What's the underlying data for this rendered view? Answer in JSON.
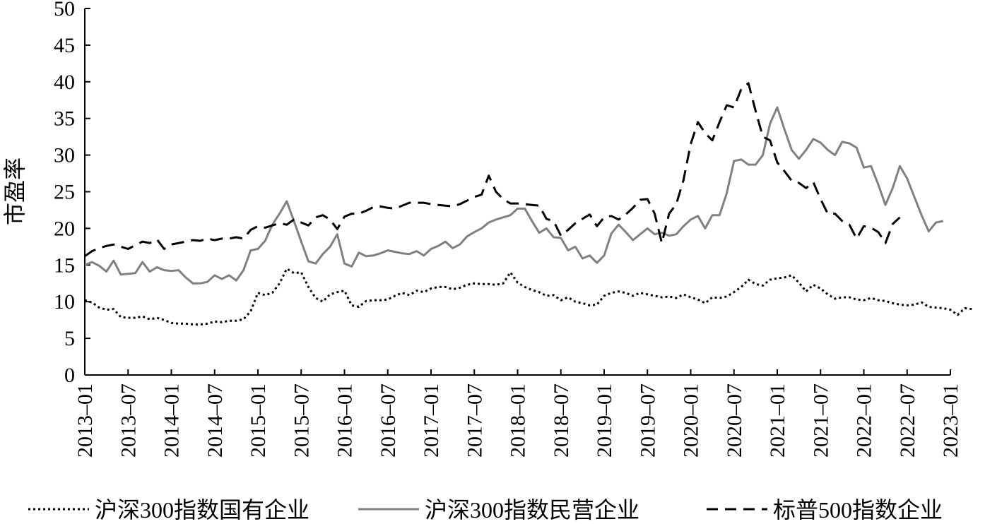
{
  "chart_data": {
    "type": "line",
    "title": "",
    "xlabel": "",
    "ylabel": "市盈率",
    "ylim": [
      0,
      50
    ],
    "yticks": [
      0,
      5,
      10,
      15,
      20,
      25,
      30,
      35,
      40,
      45,
      50
    ],
    "x_start": "2013-01",
    "x_end": "2023-01",
    "xticks": [
      "2013-01",
      "2013-07",
      "2014-01",
      "2014-07",
      "2015-01",
      "2015-07",
      "2016-01",
      "2016-07",
      "2017-01",
      "2017-07",
      "2018-01",
      "2018-07",
      "2019-01",
      "2019-07",
      "2020-01",
      "2020-07",
      "2021-01",
      "2021-07",
      "2022-01",
      "2022-07",
      "2023-01"
    ],
    "grid": false,
    "legend_position": "bottom",
    "series": [
      {
        "name": "沪深300指数国有企业",
        "style": "dotted",
        "color": "#000000",
        "values": [
          10.2,
          9.9,
          9.2,
          8.9,
          9.0,
          7.9,
          7.8,
          7.8,
          8.0,
          7.6,
          7.8,
          7.5,
          7.1,
          7.0,
          7.0,
          6.9,
          6.9,
          7.0,
          7.3,
          7.2,
          7.4,
          7.4,
          7.6,
          8.7,
          11.2,
          10.9,
          11.2,
          12.5,
          14.5,
          13.9,
          14.0,
          12.0,
          10.5,
          10.0,
          11.0,
          11.3,
          11.5,
          9.5,
          9.3,
          10.1,
          10.2,
          10.2,
          10.3,
          10.8,
          11.2,
          10.9,
          11.5,
          11.3,
          11.8,
          12.0,
          12.0,
          11.7,
          11.9,
          12.3,
          12.5,
          12.4,
          12.4,
          12.3,
          12.5,
          14.0,
          12.6,
          12.0,
          11.6,
          11.3,
          10.8,
          10.9,
          10.2,
          10.6,
          10.0,
          9.8,
          9.5,
          9.6,
          10.8,
          11.2,
          11.4,
          11.2,
          10.8,
          11.2,
          11.0,
          10.8,
          10.6,
          10.7,
          10.5,
          11.0,
          10.6,
          10.3,
          9.8,
          10.6,
          10.5,
          10.7,
          11.3,
          12.0,
          13.0,
          12.4,
          12.2,
          13.0,
          13.2,
          13.3,
          13.6,
          12.6,
          11.4,
          12.3,
          11.8,
          11.0,
          10.4,
          10.6,
          10.6,
          10.3,
          10.2,
          10.5,
          10.2,
          10.1,
          9.8,
          9.6,
          9.5,
          9.6,
          9.9,
          9.3,
          9.2,
          9.1,
          8.9,
          8.2,
          9.1,
          9.0
        ]
      },
      {
        "name": "沪深300指数民营企业",
        "style": "solid",
        "color": "#808080",
        "values": [
          15.0,
          15.4,
          14.9,
          14.1,
          15.6,
          13.7,
          13.8,
          13.9,
          15.4,
          14.1,
          14.7,
          14.3,
          14.2,
          14.3,
          13.3,
          12.5,
          12.5,
          12.7,
          13.6,
          13.1,
          13.6,
          12.9,
          14.3,
          17.0,
          17.2,
          18.3,
          20.5,
          22.0,
          23.7,
          21.0,
          18.2,
          15.5,
          15.2,
          16.5,
          17.5,
          19.2,
          15.2,
          14.8,
          16.7,
          16.2,
          16.3,
          16.6,
          17.0,
          16.8,
          16.6,
          16.5,
          16.9,
          16.3,
          17.2,
          17.6,
          18.2,
          17.3,
          17.8,
          18.9,
          19.5,
          20.0,
          20.8,
          21.2,
          21.5,
          21.8,
          22.7,
          22.7,
          21.0,
          19.4,
          20.0,
          18.8,
          18.7,
          17.0,
          17.5,
          15.9,
          16.3,
          15.3,
          16.3,
          19.3,
          20.5,
          19.5,
          18.4,
          19.2,
          20.0,
          19.2,
          19.4,
          19.0,
          19.2,
          20.3,
          21.2,
          21.7,
          20.0,
          21.8,
          21.8,
          24.8,
          29.2,
          29.4,
          28.7,
          28.7,
          30.0,
          34.3,
          36.5,
          33.5,
          30.7,
          29.5,
          30.7,
          32.2,
          31.7,
          30.7,
          30.0,
          31.8,
          31.6,
          31.0,
          28.3,
          28.5,
          26.0,
          23.2,
          25.5,
          28.5,
          26.8,
          24.3,
          21.8,
          19.6,
          20.8,
          21.0
        ]
      },
      {
        "name": "标普500指数企业",
        "style": "dashed",
        "color": "#000000",
        "values": [
          16.2,
          16.9,
          17.3,
          17.6,
          17.8,
          17.5,
          17.2,
          17.7,
          18.2,
          18.0,
          18.5,
          17.2,
          17.8,
          18.0,
          18.2,
          18.4,
          18.3,
          18.6,
          18.4,
          18.6,
          18.6,
          18.8,
          18.6,
          19.8,
          20.3,
          20.1,
          20.4,
          20.7,
          20.5,
          21.2,
          20.8,
          20.4,
          21.5,
          21.8,
          21.2,
          19.9,
          21.6,
          22.0,
          22.0,
          22.4,
          22.9,
          23.0,
          22.8,
          22.7,
          23.1,
          23.5,
          23.5,
          23.5,
          23.3,
          23.2,
          23.1,
          23.0,
          23.3,
          23.8,
          24.3,
          24.6,
          27.2,
          25.0,
          24.0,
          23.4,
          23.4,
          23.3,
          23.2,
          23.1,
          21.3,
          21.0,
          19.0,
          19.8,
          20.7,
          21.3,
          21.9,
          20.3,
          21.5,
          21.7,
          21.2,
          21.9,
          22.8,
          23.9,
          24.0,
          22.0,
          18.0,
          22.0,
          23.3,
          26.6,
          31.5,
          34.5,
          33.0,
          32.0,
          34.5,
          36.8,
          36.5,
          39.0,
          39.8,
          36.0,
          32.5,
          32.0,
          29.0,
          27.8,
          26.5,
          26.2,
          25.5,
          26.3,
          24.0,
          22.0,
          22.0,
          21.0,
          20.5,
          18.6,
          20.3,
          20.1,
          19.5,
          18.0,
          20.6,
          21.5
        ]
      }
    ]
  }
}
